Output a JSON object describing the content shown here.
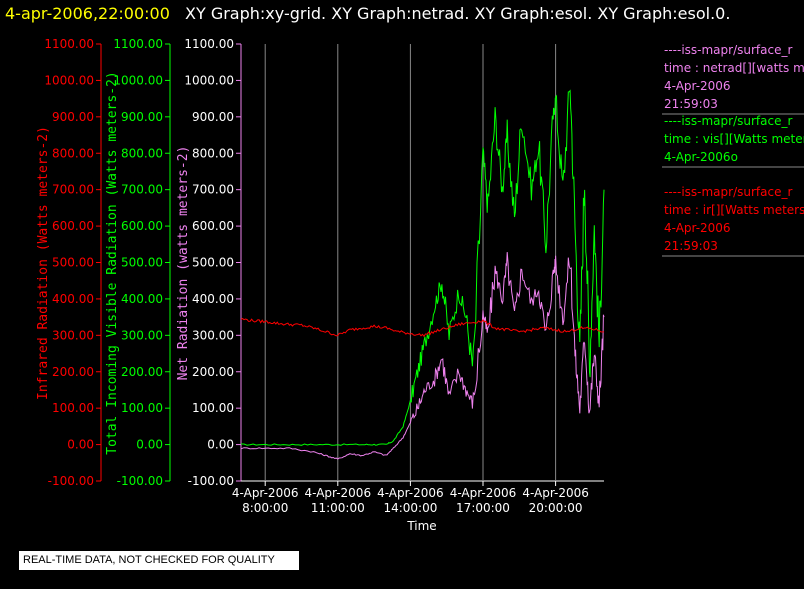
{
  "title": {
    "datetime": "4-apr-2006,22:00:00",
    "graphs": "XY Graph:xy-grid.  XY Graph:netrad.  XY Graph:esol.  XY Graph:esol.0."
  },
  "colors": {
    "red": "#ff0000",
    "green": "#00ff00",
    "violet": "#ee82ee",
    "grid": "#ffffff",
    "title_date": "#ffff00"
  },
  "status_badge": "REAL-TIME DATA, NOT CHECKED FOR QUALITY",
  "legend": [
    {
      "color": "violet",
      "lines": [
        "----iss-mapr/surface_r",
        "time : netrad[][watts me",
        "4-Apr-2006",
        "21:59:03"
      ]
    },
    {
      "color": "green",
      "lines": [
        "----iss-mapr/surface_r",
        "time : vis[][Watts meter",
        "4-Apr-2006o"
      ]
    },
    {
      "color": "red",
      "lines": [
        "----iss-mapr/surface_r",
        "time : ir[][Watts meters",
        "4-Apr-2006",
        "21:59:03"
      ]
    }
  ],
  "chart_data": {
    "type": "line",
    "xlabel": "Time",
    "x_ticks": [
      {
        "date": "4-Apr-2006",
        "time": "8:00:00",
        "hour": 8
      },
      {
        "date": "4-Apr-2006",
        "time": "11:00:00",
        "hour": 11
      },
      {
        "date": "4-Apr-2006",
        "time": "14:00:00",
        "hour": 14
      },
      {
        "date": "4-Apr-2006",
        "time": "17:00:00",
        "hour": 17
      },
      {
        "date": "4-Apr-2006",
        "time": "20:00:00",
        "hour": 20
      }
    ],
    "xlim_hours": [
      7,
      22
    ],
    "grid": true,
    "y_axes": [
      {
        "id": "ir",
        "label": "Infrared Radiation (Watts meters-2)",
        "color": "red",
        "ylim": [
          -100,
          1100
        ],
        "ticks": [
          "-100.00",
          "0.00",
          "100.00",
          "200.00",
          "300.00",
          "400.00",
          "500.00",
          "600.00",
          "700.00",
          "800.00",
          "900.00",
          "1000.00",
          "1100.00"
        ]
      },
      {
        "id": "vis",
        "label": "Total Incoming Visible Radiation (Watts meters-2)",
        "color": "green",
        "ylim": [
          -100,
          1100
        ],
        "ticks": [
          "-100.00",
          "0.00",
          "100.00",
          "200.00",
          "300.00",
          "400.00",
          "500.00",
          "600.00",
          "700.00",
          "800.00",
          "900.00",
          "1000.00",
          "1100.00"
        ]
      },
      {
        "id": "netrad",
        "label": "Net Radiation (watts meters-2)",
        "color": "violet",
        "ylim": [
          -100,
          1100
        ],
        "ticks": [
          "-100.00",
          "0.00",
          "100.00",
          "200.00",
          "300.00",
          "400.00",
          "500.00",
          "600.00",
          "700.00",
          "800.00",
          "900.00",
          "1000.00",
          "1100.00"
        ]
      }
    ],
    "series": [
      {
        "name": "vis",
        "color": "green",
        "x": [
          7,
          8,
          9,
          10,
          11,
          12,
          12.5,
          13,
          13.3,
          13.7,
          14,
          14.3,
          14.6,
          15,
          15.3,
          15.6,
          16,
          16.3,
          16.6,
          17,
          17.2,
          17.5,
          17.8,
          18,
          18.3,
          18.6,
          19,
          19.3,
          19.6,
          19.9,
          20,
          20.3,
          20.6,
          20.8,
          21,
          21.2,
          21.4,
          21.6,
          21.8,
          22
        ],
        "y": [
          0,
          0,
          0,
          0,
          0,
          0,
          0,
          0,
          10,
          50,
          120,
          200,
          280,
          380,
          450,
          300,
          420,
          350,
          200,
          800,
          650,
          900,
          700,
          850,
          620,
          900,
          700,
          820,
          550,
          900,
          950,
          700,
          1000,
          600,
          250,
          750,
          200,
          600,
          280,
          700
        ]
      },
      {
        "name": "netrad",
        "color": "violet",
        "x": [
          7,
          8,
          9,
          10,
          10.5,
          11,
          11.5,
          12,
          12.5,
          13,
          13.3,
          13.7,
          14,
          14.3,
          14.6,
          15,
          15.3,
          15.6,
          16,
          16.3,
          16.6,
          17,
          17.2,
          17.5,
          17.8,
          18,
          18.3,
          18.6,
          19,
          19.3,
          19.6,
          19.9,
          20,
          20.3,
          20.6,
          20.8,
          21,
          21.2,
          21.4,
          21.6,
          21.8,
          22
        ],
        "y": [
          -10,
          -10,
          -10,
          -20,
          -30,
          -40,
          -25,
          -30,
          -20,
          -30,
          -10,
          20,
          60,
          100,
          150,
          180,
          240,
          130,
          200,
          150,
          110,
          360,
          300,
          480,
          400,
          500,
          350,
          480,
          390,
          430,
          300,
          470,
          500,
          350,
          520,
          250,
          100,
          300,
          90,
          250,
          110,
          350
        ]
      },
      {
        "name": "ir",
        "color": "red",
        "x": [
          7,
          7.5,
          8,
          8.5,
          9,
          9.5,
          10,
          10.5,
          11,
          11.5,
          12,
          12.5,
          13,
          13.5,
          14,
          14.5,
          15,
          15.5,
          16,
          16.5,
          17,
          17.5,
          18,
          18.5,
          19,
          19.5,
          20,
          20.5,
          21,
          21.5,
          22
        ],
        "y": [
          345,
          340,
          338,
          333,
          330,
          328,
          320,
          310,
          300,
          315,
          320,
          325,
          320,
          310,
          305,
          300,
          310,
          320,
          330,
          335,
          340,
          320,
          315,
          310,
          315,
          320,
          315,
          310,
          320,
          318,
          310
        ]
      }
    ]
  }
}
